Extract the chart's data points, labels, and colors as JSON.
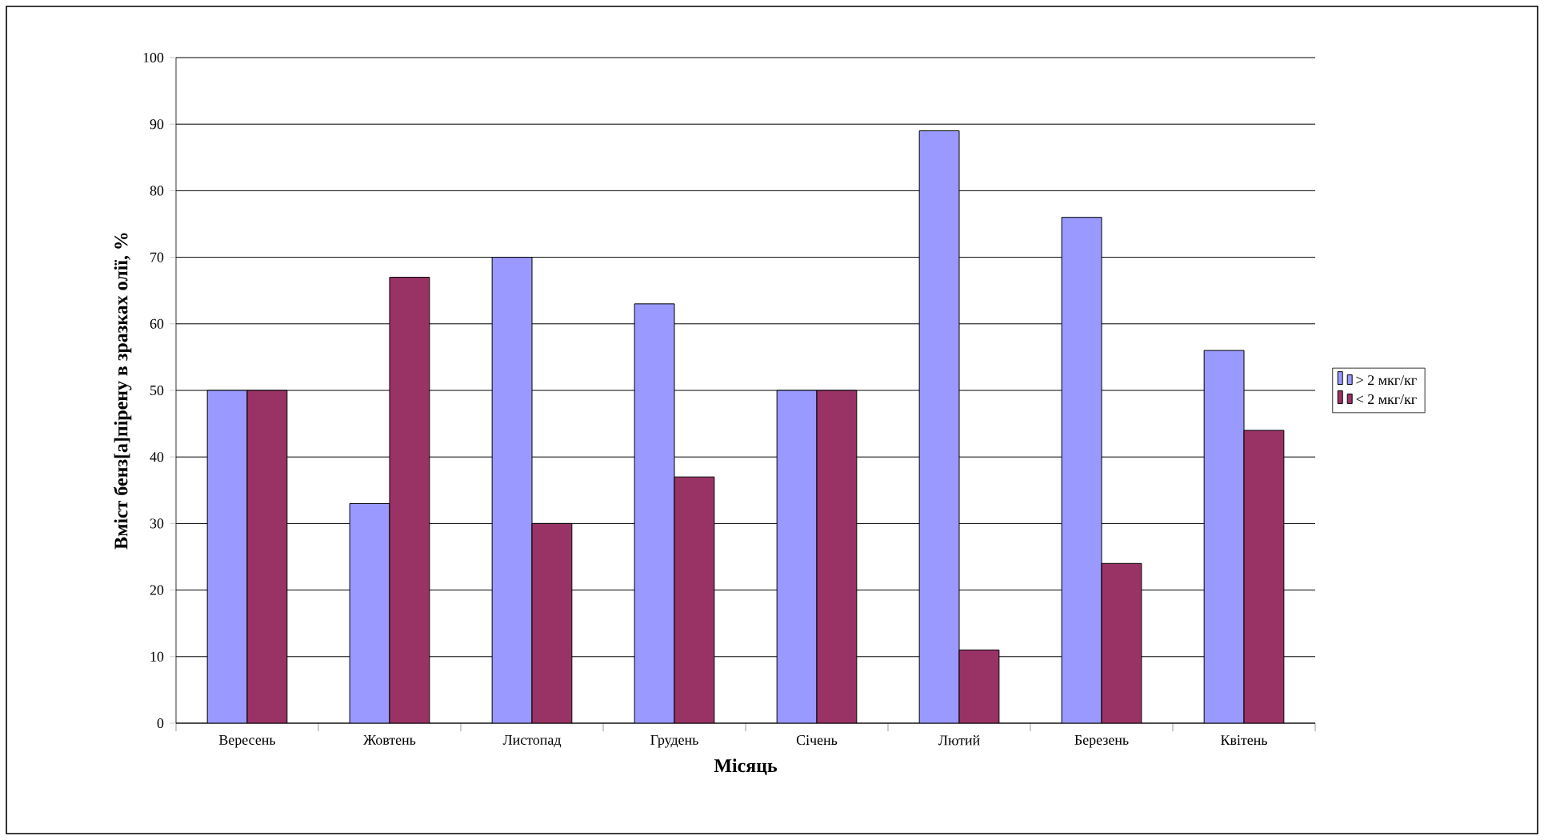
{
  "chart_data": {
    "type": "bar",
    "xlabel": "Місяць",
    "ylabel": "Вміст бенз[а]пірену в зразках олії, %",
    "categories": [
      "Вересень",
      "Жовтень",
      "Листопад",
      "Грудень",
      "Січень",
      "Лютий",
      "Березень",
      "Квітень"
    ],
    "series": [
      {
        "name": "> 2 мкг/кг",
        "color": "#9999ff",
        "values": [
          50,
          33,
          70,
          63,
          50,
          89,
          76,
          56
        ]
      },
      {
        "name": "< 2 мкг/кг",
        "color": "#993366",
        "values": [
          50,
          67,
          30,
          37,
          50,
          11,
          24,
          44
        ]
      }
    ],
    "ylim": [
      0,
      100
    ],
    "yticks": [
      0,
      10,
      20,
      30,
      40,
      50,
      60,
      70,
      80,
      90,
      100
    ],
    "grid": "y",
    "legend": "right"
  }
}
